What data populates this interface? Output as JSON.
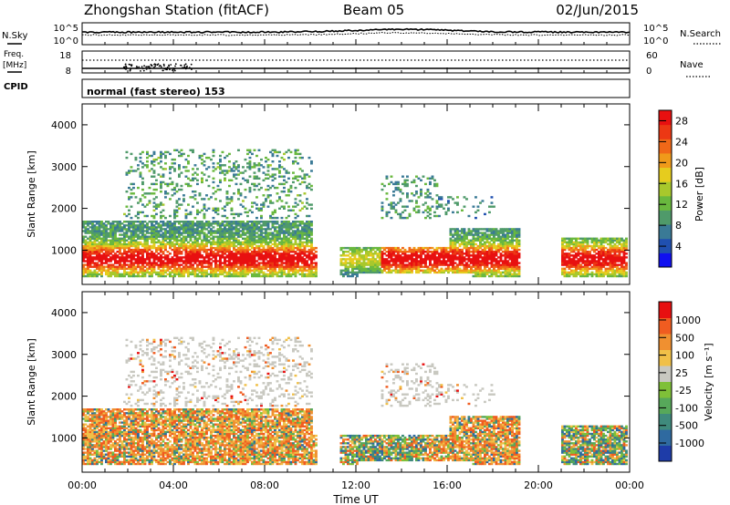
{
  "header": {
    "station": "Zhongshan Station (fitACF)",
    "beam": "Beam 05",
    "date": "02/Jun/2015"
  },
  "top_panels": {
    "nsky_label": "N.Sky",
    "nsky_tick_top": "10^5",
    "nsky_tick_bottom": "10^0",
    "nsearch_label": "N.Search",
    "nsearch_tick_top": "10^5",
    "nsearch_tick_bottom": "10^0",
    "freq_label_1": "Freq.",
    "freq_label_2": "[MHz]",
    "freq_tick_top": "18",
    "freq_tick_bottom": "8",
    "nave_label": "Nave",
    "nave_tick_top": "60",
    "nave_tick_bottom": "0",
    "cpid_label": "CPID",
    "cpid_value": "normal (fast stereo) 153"
  },
  "chart_data": [
    {
      "type": "heatmap",
      "name": "power",
      "xlabel": "Time UT",
      "ylabel": "Slant Range [km]",
      "xlim": [
        0,
        24
      ],
      "ylim": [
        180,
        4500
      ],
      "x_ticks": [
        "00:00",
        "04:00",
        "08:00",
        "12:00",
        "16:00",
        "20:00",
        "00:00"
      ],
      "y_ticks": [
        "1000",
        "2000",
        "3000",
        "4000"
      ],
      "colorbar": {
        "label": "Power [dB]",
        "ticks": [
          "4",
          "8",
          "12",
          "16",
          "20",
          "24",
          "28"
        ],
        "range": [
          0,
          30
        ],
        "colors": [
          "#1010f0",
          "#2050b0",
          "#3a7a96",
          "#4f9a6a",
          "#69b83e",
          "#a8c82c",
          "#e6cc1e",
          "#f09a1a",
          "#f06818",
          "#ec3814",
          "#e81010"
        ]
      }
    },
    {
      "type": "heatmap",
      "name": "velocity",
      "xlabel": "Time UT",
      "ylabel": "Slant Range [km]",
      "xlim": [
        0,
        24
      ],
      "ylim": [
        180,
        4500
      ],
      "x_ticks": [
        "00:00",
        "04:00",
        "08:00",
        "12:00",
        "16:00",
        "20:00",
        "00:00"
      ],
      "y_ticks": [
        "1000",
        "2000",
        "3000",
        "4000"
      ],
      "colorbar": {
        "label": "Velocity [m s⁻¹]",
        "ticks": [
          "1000",
          "500",
          "100",
          "25",
          "-25",
          "-100",
          "-500",
          "-1000"
        ],
        "colors": [
          "#1e3ca8",
          "#2f6aa0",
          "#3f8a7c",
          "#57a85a",
          "#7fc038",
          "#c8c8c0",
          "#f0c048",
          "#f09030",
          "#f05c20",
          "#e81010"
        ]
      }
    }
  ]
}
